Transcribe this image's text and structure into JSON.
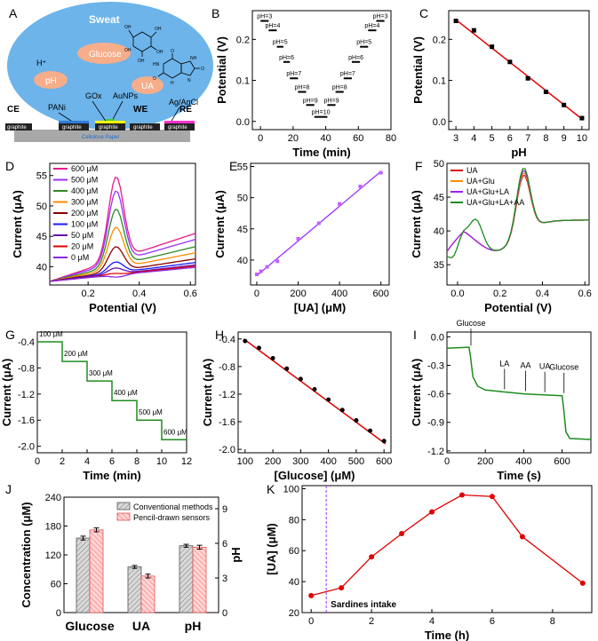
{
  "panels": {
    "A": {
      "letter": "A",
      "labels": {
        "sweat": "Sweat",
        "glucose": "Glucose",
        "ph": "pH",
        "ua": "UA",
        "hplus": "H⁺",
        "pani": "PANi",
        "gox": "GOx",
        "aunps": "AuNPs",
        "agagcl": "Ag/AgCl",
        "ce": "CE",
        "we": "WE",
        "re": "RE",
        "graphite": "graphite",
        "paper": "Cellulose Paper",
        "oh": "OH",
        "o": "O",
        "nh": "NH",
        "hn": "HN",
        "h": "H",
        "n": "N"
      }
    },
    "B": {
      "letter": "B"
    },
    "C": {
      "letter": "C"
    },
    "D": {
      "letter": "D"
    },
    "E": {
      "letter": "E"
    },
    "F": {
      "letter": "F"
    },
    "G": {
      "letter": "G"
    },
    "H": {
      "letter": "H"
    },
    "I": {
      "letter": "I"
    },
    "J": {
      "letter": "J"
    },
    "K": {
      "letter": "K"
    }
  },
  "chart_data": [
    {
      "id": "B",
      "type": "line",
      "xlabel": "Time (min)",
      "ylabel": "Potential (V)",
      "xlim": [
        -5,
        80
      ],
      "ylim": [
        -0.02,
        0.27
      ],
      "xticks": [
        0,
        20,
        40,
        60,
        80
      ],
      "yticks": [
        0.0,
        0.1,
        0.2
      ],
      "steps": [
        {
          "label": "pH=3",
          "x": [
            0,
            5
          ],
          "y": 0.245
        },
        {
          "label": "pH=4",
          "x": [
            5,
            10
          ],
          "y": 0.222
        },
        {
          "label": "pH=5",
          "x": [
            10,
            14
          ],
          "y": 0.182
        },
        {
          "label": "pH=6",
          "x": [
            14,
            18
          ],
          "y": 0.145
        },
        {
          "label": "pH=7",
          "x": [
            18,
            23
          ],
          "y": 0.105
        },
        {
          "label": "pH=8",
          "x": [
            23,
            28
          ],
          "y": 0.072
        },
        {
          "label": "pH=9",
          "x": [
            28,
            33
          ],
          "y": 0.04
        },
        {
          "label": "pH=10",
          "x": [
            33,
            41
          ],
          "y": 0.011
        },
        {
          "label": "pH=9",
          "x": [
            41,
            46
          ],
          "y": 0.04
        },
        {
          "label": "pH=8",
          "x": [
            46,
            51
          ],
          "y": 0.072
        },
        {
          "label": "pH=7",
          "x": [
            51,
            56
          ],
          "y": 0.105
        },
        {
          "label": "pH=6",
          "x": [
            56,
            61
          ],
          "y": 0.145
        },
        {
          "label": "pH=5",
          "x": [
            61,
            66
          ],
          "y": 0.182
        },
        {
          "label": "pH=4",
          "x": [
            66,
            71
          ],
          "y": 0.222
        },
        {
          "label": "pH=3",
          "x": [
            71,
            76
          ],
          "y": 0.245
        }
      ]
    },
    {
      "id": "C",
      "type": "scatter",
      "xlabel": "pH",
      "ylabel": "Potential (V)",
      "xlim": [
        2.6,
        10.4
      ],
      "ylim": [
        -0.02,
        0.27
      ],
      "xticks": [
        3,
        4,
        5,
        6,
        7,
        8,
        9,
        10
      ],
      "yticks": [
        0.0,
        0.1,
        0.2
      ],
      "x": [
        3,
        4,
        5,
        6,
        7,
        8,
        9,
        10
      ],
      "y": [
        0.245,
        0.222,
        0.182,
        0.145,
        0.105,
        0.072,
        0.04,
        0.008
      ],
      "fit": [
        [
          3,
          0.248
        ],
        [
          10,
          0.006
        ]
      ]
    },
    {
      "id": "D",
      "type": "line",
      "xlabel": "Potential (V)",
      "ylabel": "Current (μA)",
      "xlim": [
        0.05,
        0.62
      ],
      "ylim": [
        37,
        57
      ],
      "xticks": [
        0.2,
        0.4,
        0.6
      ],
      "yticks": [
        40,
        45,
        50,
        55
      ],
      "series": [
        {
          "name": "600 μM",
          "color": "#e8198b",
          "peak": 54.8,
          "base": 45.5
        },
        {
          "name": "500 μM",
          "color": "#9b30ff",
          "peak": 52.5,
          "base": 44.5
        },
        {
          "name": "400 μM",
          "color": "#2e8b22",
          "peak": 49.5,
          "base": 43.3
        },
        {
          "name": "300 μM",
          "color": "#ff8c00",
          "peak": 46.5,
          "base": 42.3
        },
        {
          "name": "200 μM",
          "color": "#8b0000",
          "peak": 43.3,
          "base": 41.3
        },
        {
          "name": "100 μM",
          "color": "#1a1aff",
          "peak": 40.8,
          "base": 40.7
        },
        {
          "name": "50 μM",
          "color": "#6a0dad",
          "peak": 39.8,
          "base": 40.3
        },
        {
          "name": "20 μM",
          "color": "#e00000",
          "peak": 38.9,
          "base": 40.1
        },
        {
          "name": "0 μM",
          "color": "#8a2be2",
          "peak": 38.3,
          "base": 39.9
        }
      ]
    },
    {
      "id": "E",
      "type": "scatter",
      "xlabel": "[UA] (μM)",
      "ylabel": "Current (μA)",
      "xlim": [
        -30,
        640
      ],
      "ylim": [
        36,
        55.5
      ],
      "xticks": [
        0,
        200,
        400,
        600
      ],
      "yticks": [
        40,
        45,
        50,
        55
      ],
      "x": [
        0,
        20,
        50,
        100,
        200,
        300,
        400,
        500,
        600
      ],
      "y": [
        37.7,
        38.2,
        38.9,
        39.8,
        43.4,
        45.9,
        49.0,
        51.8,
        54.0
      ],
      "fit": [
        [
          0,
          37.5
        ],
        [
          600,
          54.2
        ]
      ]
    },
    {
      "id": "F",
      "type": "line",
      "xlabel": "Potential (V)",
      "ylabel": "Current (μA)",
      "xlim": [
        -0.05,
        0.62
      ],
      "ylim": [
        32,
        50
      ],
      "xticks": [
        0.0,
        0.2,
        0.4,
        0.6
      ],
      "yticks": [
        35,
        40,
        45,
        50
      ],
      "series": [
        {
          "name": "UA",
          "color": "#d40000"
        },
        {
          "name": "UA+Glu",
          "color": "#ff8c00"
        },
        {
          "name": "UA+Glu+LA",
          "color": "#a020f0"
        },
        {
          "name": "UA+Glu+LA+AA",
          "color": "#1e8c1e"
        }
      ]
    },
    {
      "id": "G",
      "type": "line",
      "xlabel": "Time (min)",
      "ylabel": "Current (μA)",
      "xlim": [
        0,
        12
      ],
      "ylim": [
        -2.1,
        -0.25
      ],
      "xticks": [
        0,
        2,
        4,
        6,
        8,
        10,
        12
      ],
      "yticks": [
        -0.4,
        -0.8,
        -1.2,
        -1.6,
        -2.0
      ],
      "levels": [
        {
          "label": "100 μM",
          "x": [
            0,
            2
          ],
          "y": -0.4
        },
        {
          "label": "200 μM",
          "x": [
            2,
            4
          ],
          "y": -0.7
        },
        {
          "label": "300 μM",
          "x": [
            4,
            6
          ],
          "y": -1.0
        },
        {
          "label": "400 μM",
          "x": [
            6,
            8
          ],
          "y": -1.3
        },
        {
          "label": "500 μM",
          "x": [
            8,
            10
          ],
          "y": -1.6
        },
        {
          "label": "600 μM",
          "x": [
            10,
            12
          ],
          "y": -1.9
        }
      ]
    },
    {
      "id": "H",
      "type": "scatter",
      "xlabel": "[Glucose] (μM)",
      "ylabel": "Current (μA)",
      "xlim": [
        75,
        625
      ],
      "ylim": [
        -2.05,
        -0.3
      ],
      "xticks": [
        100,
        200,
        300,
        400,
        500,
        600
      ],
      "yticks": [
        -0.4,
        -0.8,
        -1.2,
        -1.6,
        -2.0
      ],
      "x": [
        100,
        150,
        200,
        250,
        300,
        350,
        400,
        450,
        500,
        550,
        600
      ],
      "y": [
        -0.43,
        -0.53,
        -0.68,
        -0.83,
        -0.98,
        -1.13,
        -1.28,
        -1.43,
        -1.58,
        -1.73,
        -1.88
      ],
      "fit": [
        [
          95,
          -0.4
        ],
        [
          605,
          -1.92
        ]
      ]
    },
    {
      "id": "I",
      "type": "line",
      "xlabel": "Time (s)",
      "ylabel": "Current (μA)",
      "xlim": [
        0,
        750
      ],
      "ylim": [
        -1.22,
        0.05
      ],
      "xticks": [
        0,
        200,
        400,
        600
      ],
      "yticks": [
        0.0,
        -0.3,
        -0.6,
        -0.9,
        -1.2
      ],
      "annotations": [
        {
          "label": "Glucose",
          "x": 125,
          "y": -0.12
        },
        {
          "label": "LA",
          "x": 300,
          "y": -0.58
        },
        {
          "label": "AA",
          "x": 410,
          "y": -0.6
        },
        {
          "label": "UA",
          "x": 510,
          "y": -0.61
        },
        {
          "label": "Glucose",
          "x": 610,
          "y": -0.62
        }
      ]
    },
    {
      "id": "J",
      "type": "bar",
      "ylabel": "Concentration (μM)",
      "y2label": "pH",
      "categories": [
        "Glucose",
        "UA",
        "pH"
      ],
      "ylim": [
        0,
        240
      ],
      "yticks": [
        0,
        60,
        120,
        180,
        240
      ],
      "y2lim": [
        0,
        10
      ],
      "y2ticks": [
        0,
        3,
        6,
        9
      ],
      "series": [
        {
          "name": "Conventional methods",
          "color": "#aaaaaa",
          "values": [
            155,
            95,
            139
          ],
          "err": [
            4,
            3,
            3
          ]
        },
        {
          "name": "Pencil-drawn sensors",
          "color": "#ff7f7f",
          "values": [
            172,
            76,
            136
          ],
          "err": [
            4,
            4,
            4
          ]
        }
      ]
    },
    {
      "id": "K",
      "type": "line",
      "xlabel": "Time (h)",
      "ylabel": "[UA] (μM)",
      "xlim": [
        -0.3,
        9.3
      ],
      "ylim": [
        20,
        102
      ],
      "xticks": [
        0,
        2,
        4,
        6,
        8
      ],
      "yticks": [
        20,
        40,
        60,
        80,
        100
      ],
      "x": [
        0,
        1,
        2,
        3,
        4,
        5,
        6,
        7,
        9
      ],
      "y": [
        31,
        36,
        56,
        71,
        85,
        96,
        95,
        69,
        39
      ],
      "marker": {
        "x": 0.5,
        "label": "Sardines intake"
      }
    }
  ]
}
